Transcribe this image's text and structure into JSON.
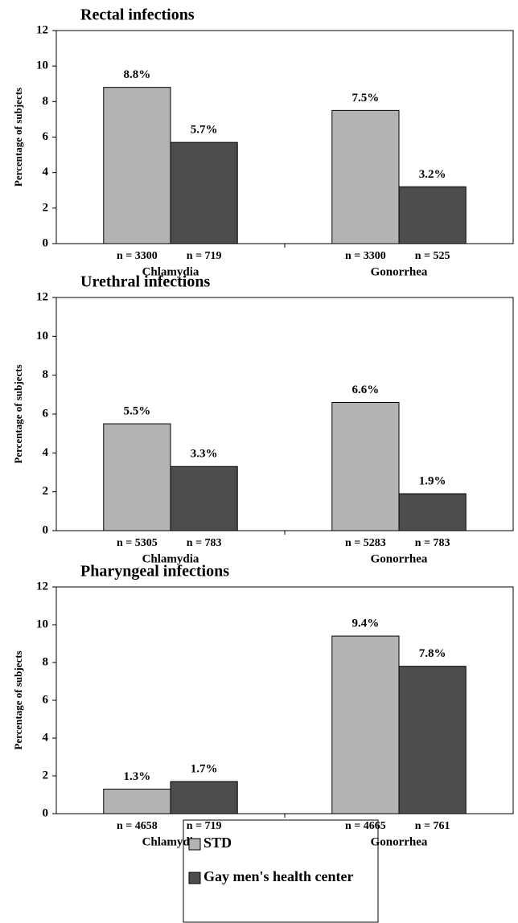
{
  "chart_data": [
    {
      "type": "bar",
      "title": "Rectal infections",
      "y_label": "Percentage of subjects",
      "categories": [
        "Chlamydia",
        "Gonorrhea"
      ],
      "sample_labels": [
        [
          "n = 3300",
          "n = 719"
        ],
        [
          "n = 3300",
          "n = 525"
        ]
      ],
      "series": [
        {
          "values": [
            8.8,
            7.5
          ],
          "value_labels": [
            "8.8%",
            "7.5%"
          ]
        },
        {
          "values": [
            5.7,
            3.2
          ],
          "value_labels": [
            "5.7%",
            "3.2%"
          ]
        }
      ],
      "ylim": [
        0,
        12
      ],
      "yticks": [
        0,
        2,
        4,
        6,
        8,
        10,
        12
      ]
    },
    {
      "type": "bar",
      "title": "Urethral infections",
      "y_label": "Percentage of subjects",
      "categories": [
        "Chlamydia",
        "Gonorrhea"
      ],
      "sample_labels": [
        [
          "n = 5305",
          "n = 783"
        ],
        [
          "n = 5283",
          "n = 783"
        ]
      ],
      "series": [
        {
          "values": [
            5.5,
            6.6
          ],
          "value_labels": [
            "5.5%",
            "6.6%"
          ]
        },
        {
          "values": [
            3.3,
            1.9
          ],
          "value_labels": [
            "3.3%",
            "1.9%"
          ]
        }
      ],
      "ylim": [
        0,
        12
      ],
      "yticks": [
        0,
        2,
        4,
        6,
        8,
        10,
        12
      ]
    },
    {
      "type": "bar",
      "title": "Pharyngeal infections",
      "y_label": "Percentage of subjects",
      "categories": [
        "Chlamydia",
        "Gonorrhea"
      ],
      "sample_labels": [
        [
          "n = 4658",
          "n = 719"
        ],
        [
          "n = 4665",
          "n = 761"
        ]
      ],
      "series": [
        {
          "values": [
            1.3,
            9.4
          ],
          "value_labels": [
            "1.3%",
            "9.4%"
          ]
        },
        {
          "values": [
            1.7,
            7.8
          ],
          "value_labels": [
            "1.7%",
            "7.8%"
          ]
        }
      ],
      "ylim": [
        0,
        12
      ],
      "yticks": [
        0,
        2,
        4,
        6,
        8,
        10,
        12
      ]
    }
  ],
  "legend": [
    {
      "name": "STD",
      "color": "#b3b3b3"
    },
    {
      "name": "Gay men's health center",
      "color": "#4d4d4d"
    }
  ]
}
